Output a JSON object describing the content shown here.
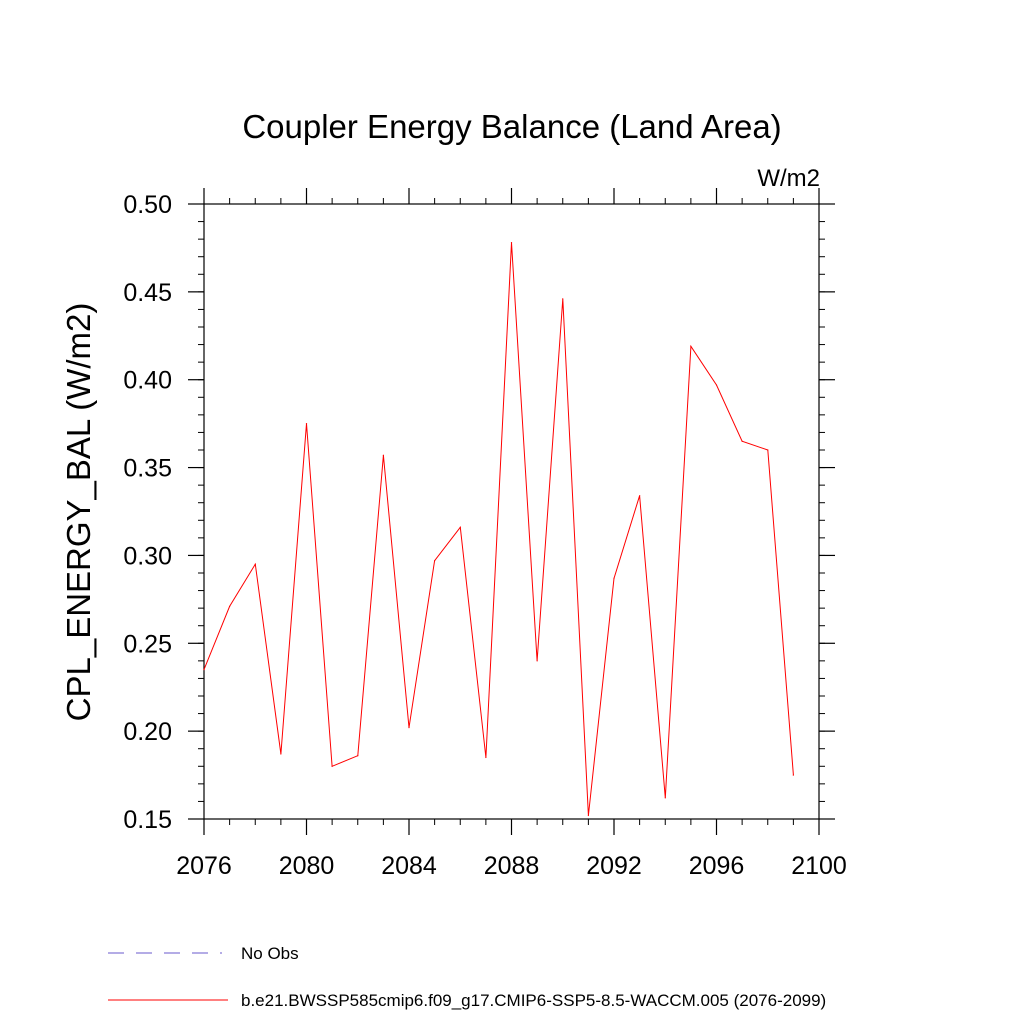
{
  "chart_data": {
    "type": "line",
    "title": "Coupler Energy Balance (Land Area)",
    "units": "W/m2",
    "ylabel": "CPL_ENERGY_BAL  (W/m2)",
    "xlabel": "",
    "xlim": [
      2076,
      2100
    ],
    "ylim": [
      0.15,
      0.5
    ],
    "x_ticks": [
      "2076",
      "2080",
      "2084",
      "2088",
      "2092",
      "2096",
      "2100"
    ],
    "y_ticks": [
      "0.15",
      "0.20",
      "0.25",
      "0.30",
      "0.35",
      "0.40",
      "0.45",
      "0.50"
    ],
    "grid": false,
    "legend_position": "bottom",
    "series": [
      {
        "name": "No Obs",
        "color": "#6a5acd",
        "dash": "dashed",
        "x": [],
        "values": []
      },
      {
        "name": "b.e21.BWSSP585cmip6.f09_g17.CMIP6-SSP5-8.5-WACCM.005 (2076-2099)",
        "color": "#ff0000",
        "dash": "solid",
        "x": [
          2076,
          2077,
          2078,
          2079,
          2080,
          2081,
          2082,
          2083,
          2084,
          2085,
          2086,
          2087,
          2088,
          2089,
          2090,
          2091,
          2092,
          2093,
          2094,
          2095,
          2096,
          2097,
          2098,
          2099
        ],
        "values": [
          0.235,
          0.271,
          0.295,
          0.187,
          0.375,
          0.18,
          0.186,
          0.357,
          0.202,
          0.297,
          0.316,
          0.185,
          0.478,
          0.24,
          0.446,
          0.152,
          0.287,
          0.334,
          0.162,
          0.419,
          0.397,
          0.365,
          0.36,
          0.175
        ]
      }
    ]
  }
}
